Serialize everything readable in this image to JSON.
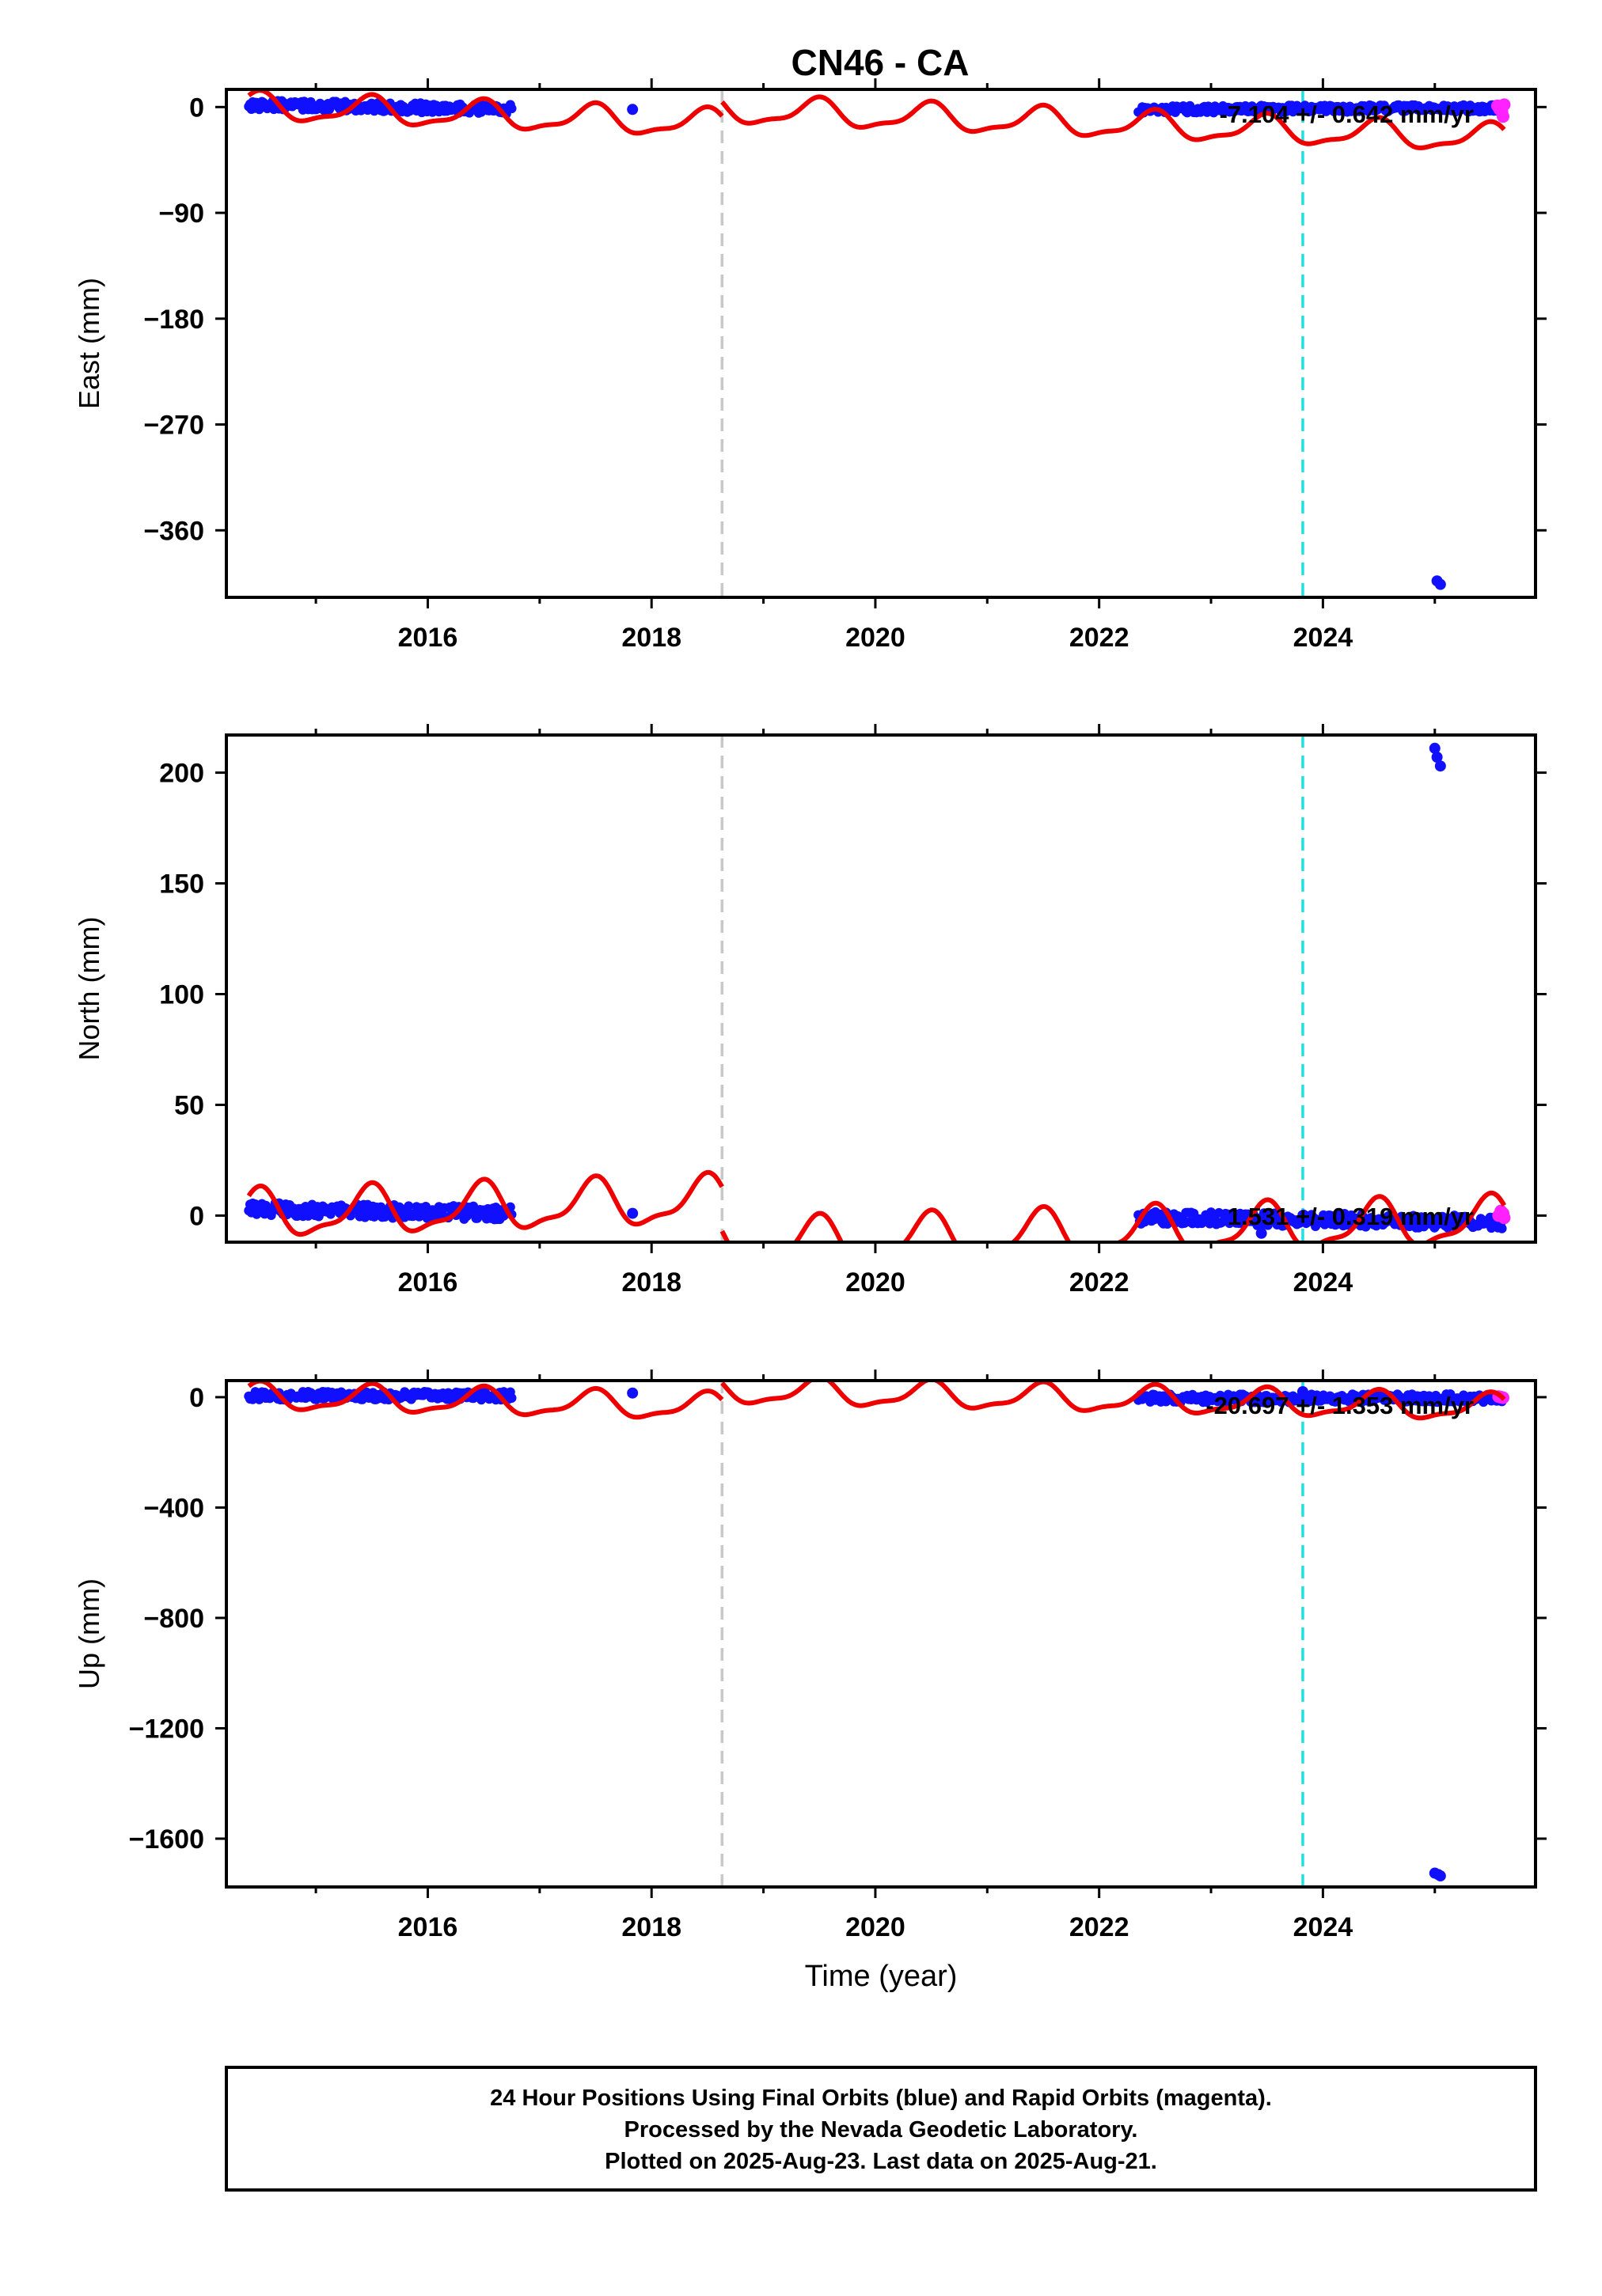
{
  "title": "CN46 - CA",
  "chart_data": [
    {
      "type": "scatter",
      "panel": "east",
      "ylabel": "East (mm)",
      "xlabel": "",
      "xlim": [
        2014.2,
        2025.9
      ],
      "ylim": [
        -417,
        15
      ],
      "yticks": [
        0,
        -90,
        -180,
        -270,
        -360
      ],
      "xticks": [
        2016,
        2018,
        2020,
        2022,
        2024
      ],
      "rate_label": "-7.104 +/- 0.642 mm/yr",
      "legend_position": "top-right",
      "final_clusters": [
        {
          "x_start": 2014.4,
          "x_end": 2016.75,
          "y_start": 2,
          "y_end": -2,
          "spread": 4
        },
        {
          "x_start": 2022.35,
          "x_end": 2025.6,
          "y_start": -2,
          "y_end": -1,
          "spread": 3
        }
      ],
      "final_points": [
        {
          "x": 2017.83,
          "y": -2
        },
        {
          "x": 2025.02,
          "y": -403
        },
        {
          "x": 2025.05,
          "y": -406
        }
      ],
      "rapid_points": [
        {
          "x": 2025.56,
          "y": 1
        },
        {
          "x": 2025.58,
          "y": -2
        },
        {
          "x": 2025.6,
          "y": -4
        },
        {
          "x": 2025.61,
          "y": -8
        },
        {
          "x": 2025.62,
          "y": 2
        }
      ],
      "model": {
        "offset": 0,
        "trend": -3.5,
        "amplitude": 11,
        "x_ref": 2014.4,
        "break_at": 2018.63,
        "jump_after": 12
      }
    },
    {
      "type": "scatter",
      "panel": "north",
      "ylabel": "North (mm)",
      "xlabel": "",
      "xlim": [
        2014.2,
        2025.9
      ],
      "ylim": [
        -12,
        217
      ],
      "yticks": [
        200,
        150,
        100,
        50,
        0
      ],
      "xticks": [
        2016,
        2018,
        2020,
        2022,
        2024
      ],
      "rate_label": "1.531 +/- 0.319 mm/yr",
      "legend_position": "bottom-right",
      "final_clusters": [
        {
          "x_start": 2014.4,
          "x_end": 2016.75,
          "y_start": 3,
          "y_end": 1,
          "spread": 3
        },
        {
          "x_start": 2022.35,
          "x_end": 2025.6,
          "y_start": -1,
          "y_end": -3,
          "spread": 3
        }
      ],
      "final_points": [
        {
          "x": 2017.83,
          "y": 1
        },
        {
          "x": 2023.45,
          "y": -8
        },
        {
          "x": 2025.0,
          "y": 211
        },
        {
          "x": 2025.02,
          "y": 207
        },
        {
          "x": 2025.05,
          "y": 203
        }
      ],
      "rapid_points": [
        {
          "x": 2025.57,
          "y": 0
        },
        {
          "x": 2025.59,
          "y": 2
        },
        {
          "x": 2025.61,
          "y": 1
        },
        {
          "x": 2025.62,
          "y": -1
        }
      ],
      "model": {
        "offset": 0,
        "trend": 1.53,
        "amplitude": 10,
        "x_ref": 2014.4,
        "break_at": 2018.63,
        "jump_after": -20
      }
    },
    {
      "type": "scatter",
      "panel": "up",
      "ylabel": "Up (mm)",
      "xlabel": "Time (year)",
      "xlim": [
        2014.2,
        2025.9
      ],
      "ylim": [
        -1775,
        60
      ],
      "yticks": [
        0,
        -400,
        -800,
        -1200,
        -1600
      ],
      "xticks": [
        2016,
        2018,
        2020,
        2022,
        2024
      ],
      "rate_label": "-20.697 +/- 1.353 mm/yr",
      "legend_position": "top-right",
      "final_clusters": [
        {
          "x_start": 2014.4,
          "x_end": 2016.75,
          "y_start": 5,
          "y_end": 5,
          "spread": 15
        },
        {
          "x_start": 2022.35,
          "x_end": 2025.6,
          "y_start": -5,
          "y_end": -3,
          "spread": 15
        }
      ],
      "final_points": [
        {
          "x": 2017.83,
          "y": 15
        },
        {
          "x": 2023.82,
          "y": 20
        },
        {
          "x": 2025.0,
          "y": -1725
        },
        {
          "x": 2025.03,
          "y": -1730
        },
        {
          "x": 2025.05,
          "y": -1735
        }
      ],
      "rapid_points": [
        {
          "x": 2025.57,
          "y": 2
        },
        {
          "x": 2025.59,
          "y": 0
        },
        {
          "x": 2025.61,
          "y": -2
        }
      ],
      "model": {
        "offset": 0,
        "trend": -9,
        "amplitude": 45,
        "x_ref": 2014.4,
        "break_at": 2018.63,
        "jump_after": 60
      }
    }
  ],
  "event_lines": [
    {
      "x": 2018.63,
      "color": "#c8c8c8"
    },
    {
      "x": 2023.82,
      "color": "#22e0e0"
    }
  ],
  "colors": {
    "final": "#1010ff",
    "rapid": "#ff22ff",
    "model": "#ee0000"
  },
  "footer": {
    "line1": "24 Hour Positions Using Final Orbits (blue) and Rapid Orbits (magenta).",
    "line2": "Processed by the Nevada Geodetic Laboratory.",
    "line3": "Plotted on 2025-Aug-23. Last data on 2025-Aug-21."
  }
}
